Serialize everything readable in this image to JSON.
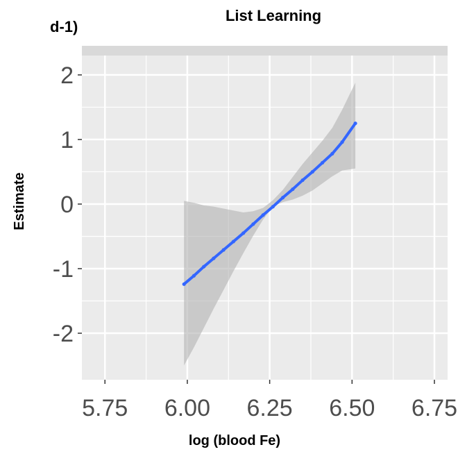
{
  "panel_label": "d-1)",
  "chart_data": {
    "type": "line",
    "title": "List Learning",
    "xlabel": "log (blood Fe)",
    "ylabel": "Estimate",
    "xlim": [
      5.68,
      6.79
    ],
    "ylim": [
      -2.72,
      2.3
    ],
    "x_ticks": [
      "5.75",
      "6.00",
      "6.25",
      "6.50",
      "6.75"
    ],
    "y_ticks": [
      "2",
      "1",
      "0",
      "-1",
      "-2"
    ],
    "grid": true,
    "series": [
      {
        "x": [
          5.99,
          6.02,
          6.05,
          6.08,
          6.11,
          6.14,
          6.17,
          6.2,
          6.23,
          6.26,
          6.29,
          6.32,
          6.35,
          6.38,
          6.41,
          6.44,
          6.47,
          6.51
        ],
        "y": [
          -1.24,
          -1.11,
          -0.97,
          -0.84,
          -0.71,
          -0.58,
          -0.45,
          -0.31,
          -0.17,
          -0.04,
          0.1,
          0.23,
          0.37,
          0.5,
          0.64,
          0.78,
          0.96,
          1.25
        ],
        "lower": [
          -2.5,
          -2.22,
          -1.92,
          -1.62,
          -1.33,
          -1.04,
          -0.76,
          -0.49,
          -0.24,
          -0.04,
          0.03,
          0.07,
          0.13,
          0.21,
          0.32,
          0.43,
          0.52,
          0.55
        ],
        "upper": [
          0.05,
          0.02,
          -0.02,
          -0.04,
          -0.07,
          -0.1,
          -0.13,
          -0.11,
          -0.06,
          0.06,
          0.22,
          0.42,
          0.62,
          0.8,
          0.98,
          1.18,
          1.46,
          1.88
        ]
      }
    ],
    "colors": {
      "panel_bg": "#ebebeb",
      "grid": "#ffffff",
      "line": "#3366ff",
      "ribbon": "#b3b3b3"
    }
  }
}
